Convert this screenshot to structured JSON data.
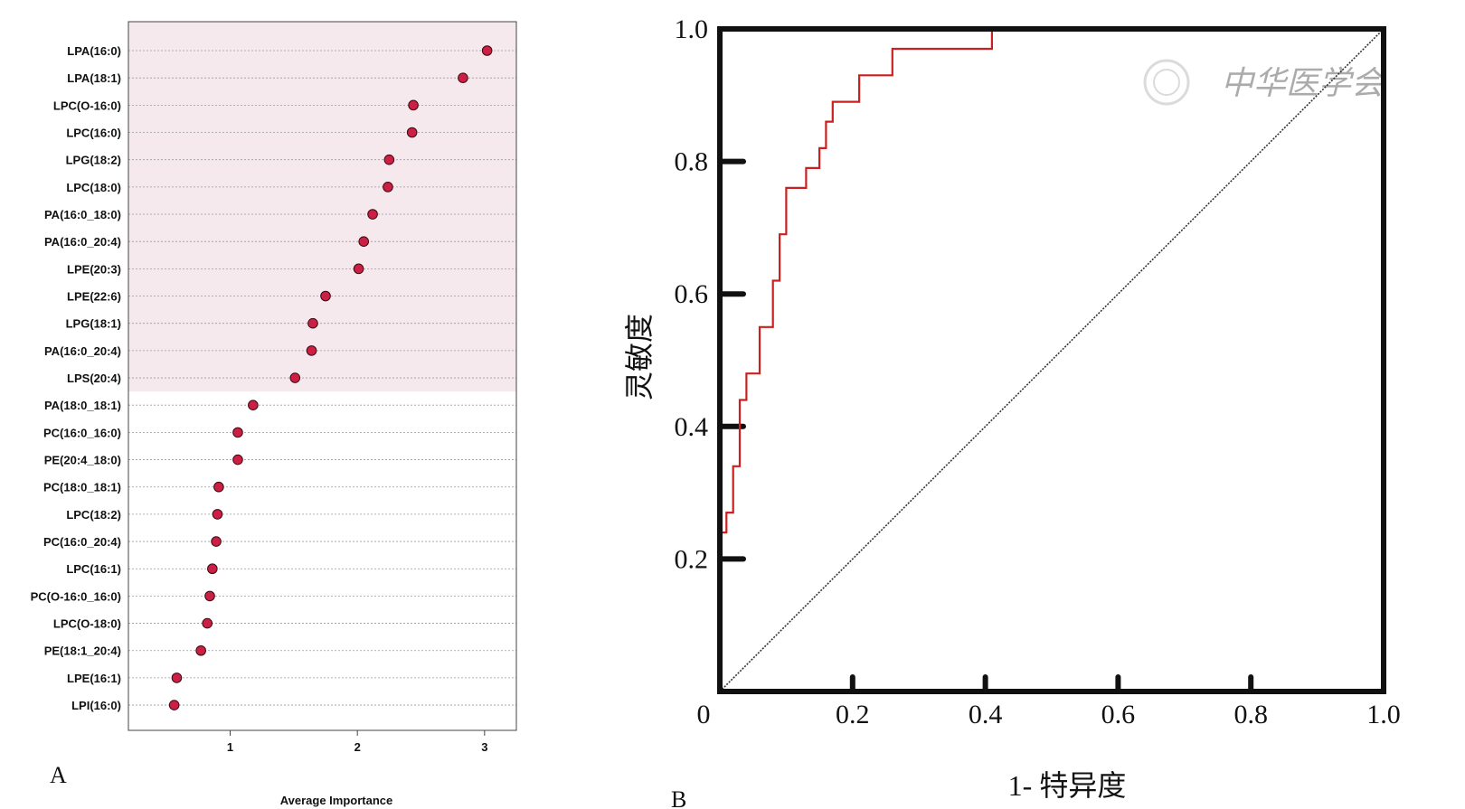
{
  "panels": {
    "a": "A",
    "b": "B"
  },
  "watermark": {
    "text": "中华医学会"
  },
  "chart_data": [
    {
      "type": "scatter",
      "xlabel": "Average Importance",
      "xlim": [
        0.2,
        3.25
      ],
      "xticks": [
        "1",
        "2",
        "3"
      ],
      "highlight": {
        "rows": 13,
        "color": "#f6e9ee"
      },
      "marker_color": "#cc1f44",
      "categories": [
        "LPA(16:0)",
        "LPA(18:1)",
        "LPC(O-16:0)",
        "LPC(16:0)",
        "LPG(18:2)",
        "LPC(18:0)",
        "PA(16:0_18:0)",
        "PA(16:0_20:4)",
        "LPE(20:3)",
        "LPE(22:6)",
        "LPG(18:1)",
        "PA(16:0_20:4)",
        "LPS(20:4)",
        "PA(18:0_18:1)",
        "PC(16:0_16:0)",
        "PE(20:4_18:0)",
        "PC(18:0_18:1)",
        "LPC(18:2)",
        "PC(16:0_20:4)",
        "LPC(16:1)",
        "PC(O-16:0_16:0)",
        "LPC(O-18:0)",
        "PE(18:1_20:4)",
        "LPE(16:1)",
        "LPI(16:0)"
      ],
      "values": [
        3.02,
        2.83,
        2.44,
        2.43,
        2.25,
        2.24,
        2.12,
        2.05,
        2.01,
        1.75,
        1.65,
        1.64,
        1.51,
        1.18,
        1.06,
        1.06,
        0.91,
        0.9,
        0.89,
        0.86,
        0.84,
        0.82,
        0.77,
        0.58,
        0.56
      ]
    },
    {
      "type": "line",
      "xlabel": "1- 特异度",
      "ylabel": "灵敏度",
      "xlim": [
        0,
        1
      ],
      "ylim": [
        0,
        1
      ],
      "xticks": [
        "0",
        "0.2",
        "0.4",
        "0.6",
        "0.8",
        "1.0"
      ],
      "yticks": [
        "0.2",
        "0.4",
        "0.6",
        "0.8",
        "1.0"
      ],
      "series": [
        {
          "color": "#cc1f1f",
          "x": [
            0,
            0,
            0.01,
            0.01,
            0.02,
            0.02,
            0.03,
            0.03,
            0.04,
            0.04,
            0.06,
            0.06,
            0.08,
            0.08,
            0.09,
            0.09,
            0.1,
            0.1,
            0.13,
            0.13,
            0.15,
            0.15,
            0.16,
            0.16,
            0.17,
            0.17,
            0.21,
            0.21,
            0.26,
            0.26,
            0.41,
            0.41
          ],
          "y": [
            0,
            0.24,
            0.24,
            0.27,
            0.27,
            0.34,
            0.34,
            0.44,
            0.44,
            0.48,
            0.48,
            0.55,
            0.55,
            0.62,
            0.62,
            0.69,
            0.69,
            0.76,
            0.76,
            0.79,
            0.79,
            0.82,
            0.82,
            0.86,
            0.86,
            0.89,
            0.89,
            0.93,
            0.93,
            0.97,
            0.97,
            1.0
          ]
        },
        {
          "color": "#333333",
          "x": [
            0,
            1
          ],
          "y": [
            0,
            1
          ]
        }
      ]
    }
  ]
}
